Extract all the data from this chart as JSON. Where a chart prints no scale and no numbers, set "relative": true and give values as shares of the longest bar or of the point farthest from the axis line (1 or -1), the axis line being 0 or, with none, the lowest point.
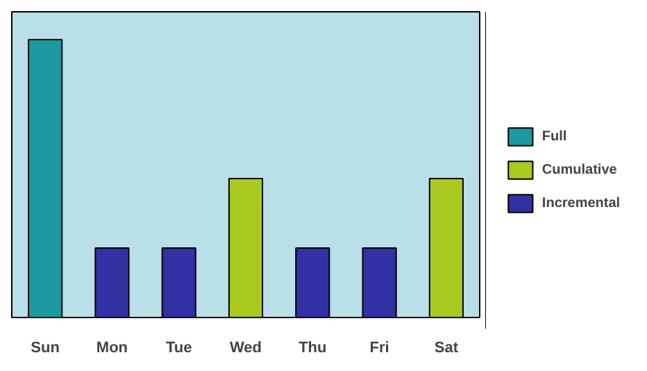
{
  "chart_data": {
    "type": "bar",
    "relative": true,
    "categories": [
      "Sun",
      "Mon",
      "Tue",
      "Wed",
      "Thu",
      "Fri",
      "Sat"
    ],
    "series": [
      {
        "name": "Full",
        "color": "#1b9aa2",
        "values": [
          1,
          null,
          null,
          null,
          null,
          null,
          null
        ]
      },
      {
        "name": "Cumulative",
        "color": "#a9c91f",
        "values": [
          null,
          null,
          null,
          0.5,
          null,
          null,
          0.5
        ]
      },
      {
        "name": "Incremental",
        "color": "#3131a3",
        "values": [
          null,
          0.25,
          0.25,
          null,
          0.25,
          0.25,
          null
        ]
      }
    ],
    "legend": "right"
  }
}
